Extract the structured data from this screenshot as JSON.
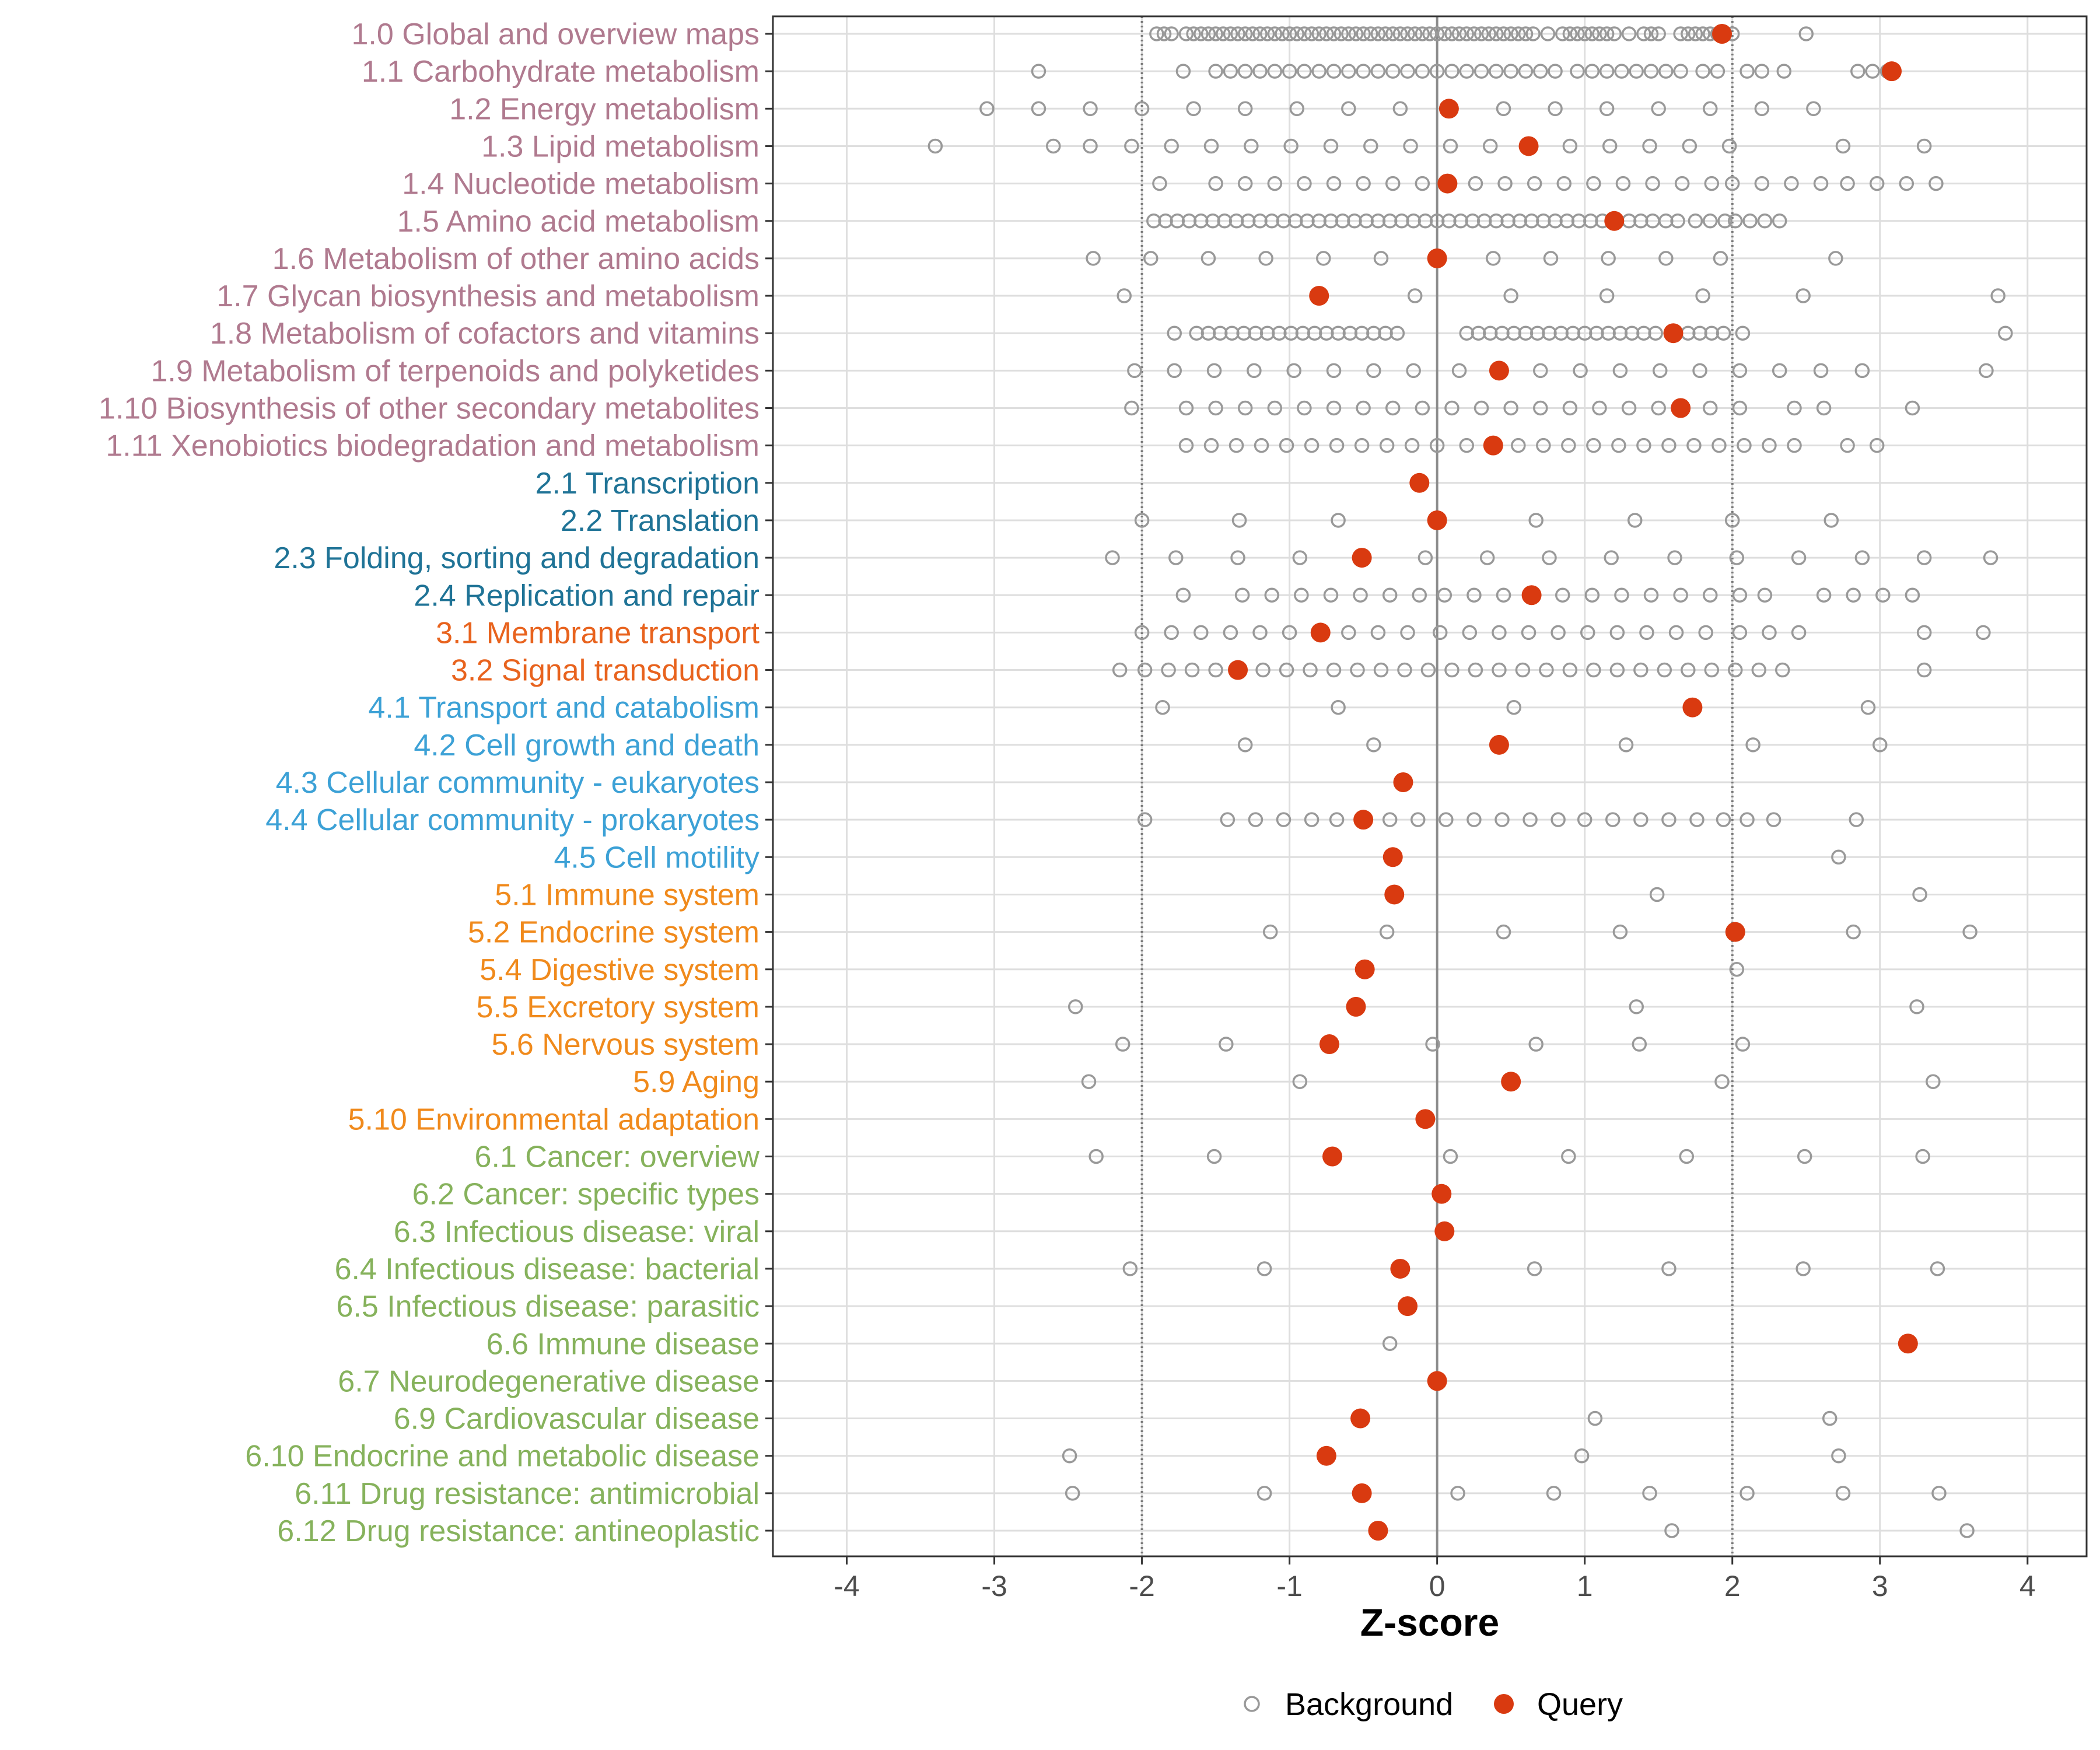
{
  "chart_data": {
    "type": "scatter",
    "xlabel": "Z-score",
    "xlim": [
      -4.5,
      4.4
    ],
    "xticks": [
      -4,
      -3,
      -2,
      -1,
      0,
      1,
      2,
      3,
      4
    ],
    "xtick_labels": [
      "-4",
      "-3",
      "-2",
      "-1",
      "0",
      "1",
      "2",
      "3",
      "4"
    ],
    "reference_lines": {
      "dotted": [
        -2,
        2
      ],
      "solid": [
        0
      ]
    },
    "grid": true,
    "legend": {
      "position": "bottom",
      "entries": [
        {
          "name": "Background",
          "marker": "open-circle",
          "color": "#999999"
        },
        {
          "name": "Query",
          "marker": "filled-circle",
          "color": "#D93A10"
        }
      ]
    },
    "group_colors": {
      "1": "#B07A8F",
      "2": "#1F7396",
      "3": "#E8631E",
      "4": "#3CA1D6",
      "5": "#F08A1C",
      "6": "#86B25C"
    },
    "categories": [
      {
        "label": "1.0 Global and overview maps",
        "group": "1",
        "query": 1.93,
        "background": [
          -1.9,
          -1.85,
          -1.8,
          -1.7,
          -1.65,
          -1.6,
          -1.55,
          -1.5,
          -1.45,
          -1.4,
          -1.35,
          -1.3,
          -1.25,
          -1.2,
          -1.15,
          -1.1,
          -1.05,
          -1.0,
          -0.95,
          -0.9,
          -0.85,
          -0.8,
          -0.75,
          -0.7,
          -0.65,
          -0.6,
          -0.55,
          -0.5,
          -0.45,
          -0.4,
          -0.35,
          -0.3,
          -0.25,
          -0.2,
          -0.15,
          -0.1,
          -0.05,
          0.0,
          0.05,
          0.1,
          0.15,
          0.2,
          0.25,
          0.3,
          0.35,
          0.4,
          0.45,
          0.5,
          0.55,
          0.6,
          0.65,
          0.75,
          0.85,
          0.9,
          0.95,
          1.0,
          1.05,
          1.1,
          1.15,
          1.2,
          1.3,
          1.4,
          1.45,
          1.5,
          1.65,
          1.7,
          1.75,
          1.8,
          1.85,
          1.9,
          2.0,
          2.5
        ]
      },
      {
        "label": "1.1 Carbohydrate metabolism",
        "group": "1",
        "query": 3.08,
        "background": [
          -2.7,
          -1.72,
          -1.5,
          -1.4,
          -1.3,
          -1.2,
          -1.1,
          -1.0,
          -0.9,
          -0.8,
          -0.7,
          -0.6,
          -0.5,
          -0.4,
          -0.3,
          -0.2,
          -0.1,
          0.0,
          0.1,
          0.2,
          0.3,
          0.4,
          0.5,
          0.6,
          0.7,
          0.8,
          0.95,
          1.05,
          1.15,
          1.25,
          1.35,
          1.45,
          1.55,
          1.65,
          1.8,
          1.9,
          2.1,
          2.2,
          2.35,
          2.85,
          2.95,
          3.05
        ]
      },
      {
        "label": "1.2 Energy metabolism",
        "group": "1",
        "query": 0.08,
        "background": [
          -3.05,
          -2.7,
          -2.35,
          -2.0,
          -1.65,
          -1.3,
          -0.95,
          -0.6,
          -0.25,
          0.45,
          0.8,
          1.15,
          1.5,
          1.85,
          2.2,
          2.55
        ]
      },
      {
        "label": "1.3 Lipid metabolism",
        "group": "1",
        "query": 0.62,
        "background": [
          -3.4,
          -2.6,
          -2.35,
          -2.07,
          -1.8,
          -1.53,
          -1.26,
          -0.99,
          -0.72,
          -0.45,
          -0.18,
          0.09,
          0.36,
          0.9,
          1.17,
          1.44,
          1.71,
          1.98,
          2.75,
          3.3
        ]
      },
      {
        "label": "1.4 Nucleotide metabolism",
        "group": "1",
        "query": 0.07,
        "background": [
          -1.88,
          -1.5,
          -1.3,
          -1.1,
          -0.9,
          -0.7,
          -0.5,
          -0.3,
          -0.1,
          0.26,
          0.46,
          0.66,
          0.86,
          1.06,
          1.26,
          1.46,
          1.66,
          1.86,
          2.0,
          2.2,
          2.4,
          2.6,
          2.78,
          2.98,
          3.18,
          3.38
        ]
      },
      {
        "label": "1.5 Amino acid metabolism",
        "group": "1",
        "query": 1.2,
        "background": [
          -1.92,
          -1.84,
          -1.76,
          -1.68,
          -1.6,
          -1.52,
          -1.44,
          -1.36,
          -1.28,
          -1.2,
          -1.12,
          -1.04,
          -0.96,
          -0.88,
          -0.8,
          -0.72,
          -0.64,
          -0.56,
          -0.48,
          -0.4,
          -0.32,
          -0.24,
          -0.16,
          -0.08,
          0.0,
          0.08,
          0.16,
          0.24,
          0.32,
          0.4,
          0.48,
          0.56,
          0.64,
          0.72,
          0.8,
          0.88,
          0.96,
          1.04,
          1.12,
          1.3,
          1.38,
          1.46,
          1.55,
          1.63,
          1.75,
          1.85,
          1.95,
          2.02,
          2.12,
          2.22,
          2.32
        ]
      },
      {
        "label": "1.6 Metabolism of other amino acids",
        "group": "1",
        "query": 0.0,
        "background": [
          -2.33,
          -1.94,
          -1.55,
          -1.16,
          -0.77,
          -0.38,
          0.38,
          0.77,
          1.16,
          1.55,
          1.92,
          2.7
        ]
      },
      {
        "label": "1.7 Glycan biosynthesis and metabolism",
        "group": "1",
        "query": -0.8,
        "background": [
          -2.12,
          -0.15,
          0.5,
          1.15,
          1.8,
          2.48,
          3.8
        ]
      },
      {
        "label": "1.8 Metabolism of cofactors and vitamins",
        "group": "1",
        "query": 1.6,
        "background": [
          -1.78,
          -1.63,
          -1.55,
          -1.47,
          -1.39,
          -1.31,
          -1.23,
          -1.15,
          -1.07,
          -0.99,
          -0.91,
          -0.83,
          -0.75,
          -0.67,
          -0.59,
          -0.51,
          -0.43,
          -0.35,
          -0.27,
          0.2,
          0.28,
          0.36,
          0.44,
          0.52,
          0.6,
          0.68,
          0.76,
          0.84,
          0.92,
          1.0,
          1.08,
          1.16,
          1.24,
          1.32,
          1.4,
          1.48,
          1.7,
          1.78,
          1.86,
          1.94,
          2.07,
          3.85
        ]
      },
      {
        "label": "1.9 Metabolism of terpenoids and polyketides",
        "group": "1",
        "query": 0.42,
        "background": [
          -2.05,
          -1.78,
          -1.51,
          -1.24,
          -0.97,
          -0.7,
          -0.43,
          -0.16,
          0.15,
          0.7,
          0.97,
          1.24,
          1.51,
          1.78,
          2.05,
          2.32,
          2.6,
          2.88,
          3.72
        ]
      },
      {
        "label": "1.10 Biosynthesis of other secondary metabolites",
        "group": "1",
        "query": 1.65,
        "background": [
          -2.07,
          -1.7,
          -1.5,
          -1.3,
          -1.1,
          -0.9,
          -0.7,
          -0.5,
          -0.3,
          -0.1,
          0.1,
          0.3,
          0.5,
          0.7,
          0.9,
          1.1,
          1.3,
          1.5,
          1.85,
          2.05,
          2.42,
          2.62,
          3.22
        ]
      },
      {
        "label": "1.11 Xenobiotics biodegradation and metabolism",
        "group": "1",
        "query": 0.38,
        "background": [
          -1.7,
          -1.53,
          -1.36,
          -1.19,
          -1.02,
          -0.85,
          -0.68,
          -0.51,
          -0.34,
          -0.17,
          0.0,
          0.2,
          0.55,
          0.72,
          0.89,
          1.06,
          1.23,
          1.4,
          1.57,
          1.74,
          1.91,
          2.08,
          2.25,
          2.42,
          2.78,
          2.98
        ]
      },
      {
        "label": "2.1 Transcription",
        "group": "2",
        "query": -0.12,
        "background": []
      },
      {
        "label": "2.2 Translation",
        "group": "2",
        "query": 0.0,
        "background": [
          -2.0,
          -1.34,
          -0.67,
          0.67,
          1.34,
          2.0,
          2.67
        ]
      },
      {
        "label": "2.3 Folding, sorting and degradation",
        "group": "2",
        "query": -0.51,
        "background": [
          -2.2,
          -1.77,
          -1.35,
          -0.93,
          -0.08,
          0.34,
          0.76,
          1.18,
          1.61,
          2.03,
          2.45,
          2.88,
          3.3,
          3.75
        ]
      },
      {
        "label": "2.4 Replication and repair",
        "group": "2",
        "query": 0.64,
        "background": [
          -1.72,
          -1.32,
          -1.12,
          -0.92,
          -0.72,
          -0.52,
          -0.32,
          -0.12,
          0.05,
          0.25,
          0.45,
          0.85,
          1.05,
          1.25,
          1.45,
          1.65,
          1.85,
          2.05,
          2.22,
          2.62,
          2.82,
          3.02,
          3.22
        ]
      },
      {
        "label": "3.1 Membrane transport",
        "group": "3",
        "query": -0.79,
        "background": [
          -2.0,
          -1.8,
          -1.6,
          -1.4,
          -1.2,
          -1.0,
          -0.6,
          -0.4,
          -0.2,
          0.02,
          0.22,
          0.42,
          0.62,
          0.82,
          1.02,
          1.22,
          1.42,
          1.62,
          1.82,
          2.05,
          2.25,
          2.45,
          3.3,
          3.7
        ]
      },
      {
        "label": "3.2 Signal transduction",
        "group": "3",
        "query": -1.35,
        "background": [
          -2.15,
          -1.98,
          -1.82,
          -1.66,
          -1.5,
          -1.18,
          -1.02,
          -0.86,
          -0.7,
          -0.54,
          -0.38,
          -0.22,
          -0.06,
          0.1,
          0.26,
          0.42,
          0.58,
          0.74,
          0.9,
          1.06,
          1.22,
          1.38,
          1.54,
          1.7,
          1.86,
          2.02,
          2.18,
          2.34,
          3.3
        ]
      },
      {
        "label": "4.1 Transport and catabolism",
        "group": "4",
        "query": 1.73,
        "background": [
          -1.86,
          -0.67,
          0.52,
          2.92
        ]
      },
      {
        "label": "4.2 Cell growth and death",
        "group": "4",
        "query": 0.42,
        "background": [
          -1.3,
          -0.43,
          1.28,
          2.14,
          3.0
        ]
      },
      {
        "label": "4.3 Cellular community - eukaryotes",
        "group": "4",
        "query": -0.23,
        "background": []
      },
      {
        "label": "4.4 Cellular community - prokaryotes",
        "group": "4",
        "query": -0.5,
        "background": [
          -1.98,
          -1.42,
          -1.23,
          -1.04,
          -0.85,
          -0.68,
          -0.32,
          -0.13,
          0.06,
          0.25,
          0.44,
          0.63,
          0.82,
          1.0,
          1.19,
          1.38,
          1.57,
          1.76,
          1.94,
          2.1,
          2.28,
          2.84
        ]
      },
      {
        "label": "4.5 Cell motility",
        "group": "4",
        "query": -0.3,
        "background": [
          2.72
        ]
      },
      {
        "label": "5.1 Immune system",
        "group": "5",
        "query": -0.29,
        "background": [
          1.49,
          3.27
        ]
      },
      {
        "label": "5.2 Endocrine system",
        "group": "5",
        "query": 2.02,
        "background": [
          -1.13,
          -0.34,
          0.45,
          1.24,
          2.82,
          3.61
        ]
      },
      {
        "label": "5.4 Digestive system",
        "group": "5",
        "query": -0.49,
        "background": [
          2.03
        ]
      },
      {
        "label": "5.5 Excretory system",
        "group": "5",
        "query": -0.55,
        "background": [
          -2.45,
          1.35,
          3.25
        ]
      },
      {
        "label": "5.6 Nervous system",
        "group": "5",
        "query": -0.73,
        "background": [
          -2.13,
          -1.43,
          -0.03,
          0.67,
          1.37,
          2.07
        ]
      },
      {
        "label": "5.9 Aging",
        "group": "5",
        "query": 0.5,
        "background": [
          -2.36,
          -0.93,
          1.93,
          3.36
        ]
      },
      {
        "label": "5.10 Environmental adaptation",
        "group": "5",
        "query": -0.08,
        "background": []
      },
      {
        "label": "6.1 Cancer: overview",
        "group": "6",
        "query": -0.71,
        "background": [
          -2.31,
          -1.51,
          0.09,
          0.89,
          1.69,
          2.49,
          3.29
        ]
      },
      {
        "label": "6.2 Cancer: specific types",
        "group": "6",
        "query": 0.03,
        "background": []
      },
      {
        "label": "6.3 Infectious disease: viral",
        "group": "6",
        "query": 0.05,
        "background": []
      },
      {
        "label": "6.4 Infectious disease: bacterial",
        "group": "6",
        "query": -0.25,
        "background": [
          -2.08,
          -1.17,
          0.66,
          1.57,
          2.48,
          3.39
        ]
      },
      {
        "label": "6.5 Infectious disease: parasitic",
        "group": "6",
        "query": -0.2,
        "background": []
      },
      {
        "label": "6.6 Immune disease",
        "group": "6",
        "query": 3.19,
        "background": [
          -0.32
        ]
      },
      {
        "label": "6.7 Neurodegenerative disease",
        "group": "6",
        "query": 0.0,
        "background": []
      },
      {
        "label": "6.9 Cardiovascular disease",
        "group": "6",
        "query": -0.52,
        "background": [
          1.07,
          2.66
        ]
      },
      {
        "label": "6.10 Endocrine and metabolic disease",
        "group": "6",
        "query": -0.75,
        "background": [
          -2.49,
          0.98,
          2.72
        ]
      },
      {
        "label": "6.11 Drug resistance: antimicrobial",
        "group": "6",
        "query": -0.51,
        "background": [
          -2.47,
          -1.17,
          0.14,
          0.79,
          1.44,
          2.1,
          2.75,
          3.4
        ]
      },
      {
        "label": "6.12 Drug resistance: antineoplastic",
        "group": "6",
        "query": -0.4,
        "background": [
          1.59,
          3.59
        ]
      }
    ]
  }
}
